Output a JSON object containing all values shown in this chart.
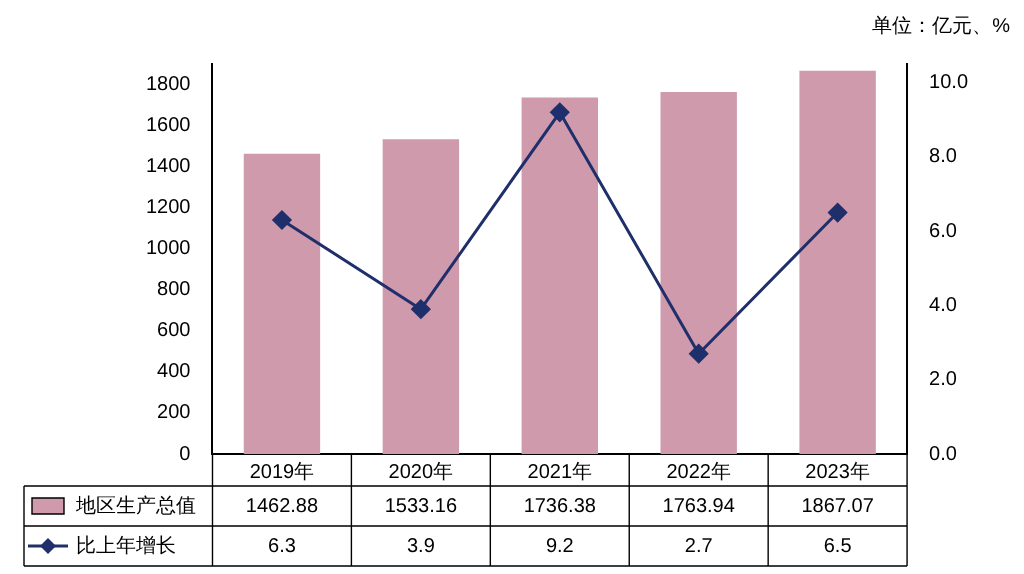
{
  "chart_data": {
    "type": "bar",
    "annotations": [
      "单位：亿元、%"
    ],
    "categories": [
      "2019年",
      "2020年",
      "2021年",
      "2022年",
      "2023年"
    ],
    "series": [
      {
        "name": "地区生产总值",
        "color": "#cf9aab",
        "values": [
          1462.88,
          1533.16,
          1736.38,
          1763.94,
          1867.07
        ]
      },
      {
        "name": "比上年增长",
        "type": "line",
        "axis": "y2",
        "color": "#1f2f6b",
        "values": [
          6.3,
          3.9,
          9.2,
          2.7,
          6.5
        ]
      }
    ],
    "ylim": [
      0,
      1900
    ],
    "yticks": [
      0,
      200,
      400,
      600,
      800,
      1000,
      1200,
      1400,
      1600,
      1800
    ],
    "y2lim": [
      0,
      10.5
    ],
    "y2ticks": [
      {
        "value": 0,
        "label": "0.0"
      },
      {
        "value": 2,
        "label": "2.0"
      },
      {
        "value": 4,
        "label": "4.0"
      },
      {
        "value": 6,
        "label": "6.0"
      },
      {
        "value": 8,
        "label": "8.0"
      },
      {
        "value": 10,
        "label": "10.0"
      }
    ],
    "data_labels": true,
    "legend": "bottom",
    "marker": "diamond",
    "line_style": "solid",
    "grid": false
  }
}
